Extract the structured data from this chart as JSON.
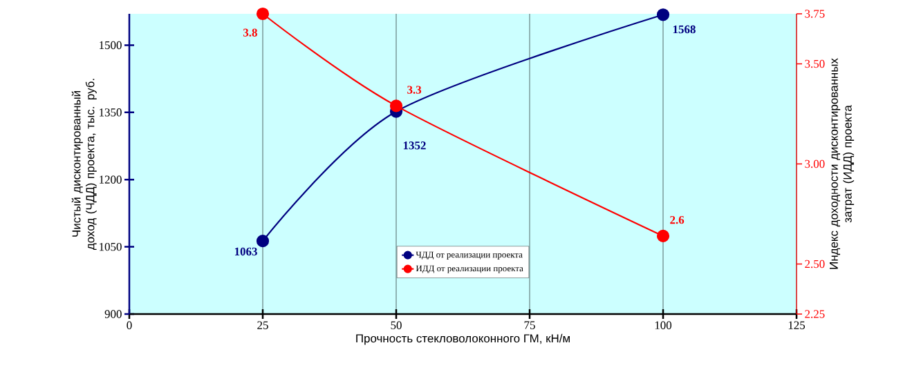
{
  "chart_data": {
    "type": "line",
    "xlabel": "Прочность стекловолоконного ГМ, кН/м",
    "ylabel": "Чистый дисконтированный доход (ЧДД) проекта, тыс. руб.",
    "y2label": "Индекс доходности дисконтированных затрат (ИДД) проекта",
    "xlim": [
      0,
      125
    ],
    "xticks": [
      0,
      25,
      50,
      75,
      100,
      125
    ],
    "ylim": [
      900,
      1570
    ],
    "yticks": [
      900,
      1050,
      1200,
      1350,
      1500
    ],
    "y2lim": [
      2.25,
      3.75
    ],
    "y2ticks": [
      2.25,
      {
        "value": 2.5,
        "label": "2.50"
      },
      {
        "value": 3.0,
        "label": "3.00"
      },
      {
        "value": 3.5,
        "label": "3.50"
      },
      3.75
    ],
    "grid": "x",
    "legend": "bottom",
    "marker": "circle",
    "line_style": "solid",
    "series": [
      {
        "name": "ЧДД от реализации проекта",
        "color": "#000080",
        "x": [
          25,
          50,
          100
        ],
        "values": [
          1063,
          1352,
          1568
        ],
        "value_labels": [
          "1063",
          "1352",
          "1568"
        ]
      },
      {
        "name": "ИДД от реализации проекта",
        "color": "#ff0000",
        "axis": "y2",
        "x": [
          25,
          50,
          100
        ],
        "values": [
          3.75,
          3.29,
          2.64
        ],
        "value_labels": [
          "3.8",
          "3.3",
          "2.6"
        ]
      }
    ]
  }
}
